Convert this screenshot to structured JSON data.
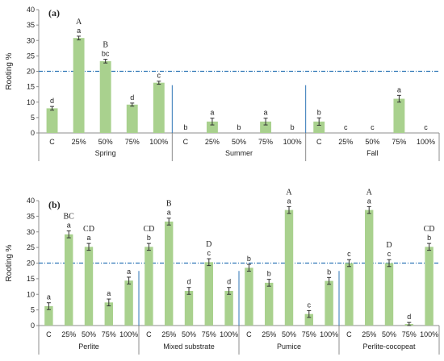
{
  "chart_data": [
    {
      "type": "bar",
      "panel_label": "(a)",
      "ylabel": "Rooting %",
      "ylim": [
        0,
        40
      ],
      "yticks": [
        0,
        5,
        10,
        15,
        20,
        25,
        30,
        35,
        40
      ],
      "reference_line": 20,
      "bar_color": "#a9d18e",
      "reference_color": "#2e75b6",
      "groups": [
        {
          "name": "Spring",
          "categories": [
            "C",
            "25%",
            "50%",
            "75%",
            "100%"
          ],
          "values": [
            8,
            30.8,
            23.3,
            9.2,
            16.3
          ],
          "errors": [
            0.6,
            0.6,
            0.6,
            0.5,
            0.5
          ],
          "letters": [
            "d",
            "a",
            "bc",
            "d",
            "c"
          ],
          "upper_letters": [
            "",
            "A",
            "B",
            "",
            ""
          ]
        },
        {
          "name": "Summer",
          "categories": [
            "C",
            "25%",
            "50%",
            "75%",
            "100%"
          ],
          "values": [
            0,
            3.7,
            0,
            3.7,
            0
          ],
          "errors": [
            0,
            1.1,
            0,
            1.1,
            0
          ],
          "letters": [
            "b",
            "a",
            "b",
            "a",
            "b"
          ],
          "upper_letters": [
            "",
            "",
            "",
            "",
            ""
          ]
        },
        {
          "name": "Fall",
          "categories": [
            "C",
            "25%",
            "50%",
            "75%",
            "100%"
          ],
          "values": [
            3.7,
            0,
            0,
            11.1,
            0
          ],
          "errors": [
            1.2,
            0,
            0,
            1.1,
            0
          ],
          "letters": [
            "b",
            "c",
            "c",
            "a",
            "c"
          ],
          "upper_letters": [
            "",
            "",
            "",
            "",
            ""
          ]
        }
      ]
    },
    {
      "type": "bar",
      "panel_label": "(b)",
      "ylabel": "Rooting %",
      "ylim": [
        0,
        40
      ],
      "yticks": [
        0,
        5,
        10,
        15,
        20,
        25,
        30,
        35,
        40
      ],
      "reference_line": 20,
      "bar_color": "#a9d18e",
      "reference_color": "#2e75b6",
      "groups": [
        {
          "name": "Perlite",
          "categories": [
            "C",
            "25%",
            "50%",
            "75%",
            "100%"
          ],
          "values": [
            6.2,
            29.2,
            25.2,
            7.4,
            14.4
          ],
          "errors": [
            1.1,
            1.1,
            1.1,
            1.1,
            1.1
          ],
          "letters": [
            "a",
            "a",
            "a",
            "a",
            "a"
          ],
          "upper_letters": [
            "",
            "BC",
            "CD",
            "",
            ""
          ]
        },
        {
          "name": "Mixed substrate",
          "categories": [
            "C",
            "25%",
            "50%",
            "75%",
            "100%"
          ],
          "values": [
            25.2,
            33.3,
            11.1,
            20.3,
            11.1
          ],
          "errors": [
            1.1,
            1.1,
            1.1,
            1.1,
            1.1
          ],
          "letters": [
            "b",
            "a",
            "d",
            "c",
            "d"
          ],
          "upper_letters": [
            "CD",
            "B",
            "",
            "D",
            ""
          ]
        },
        {
          "name": "Pumice",
          "categories": [
            "C",
            "25%",
            "50%",
            "75%",
            "100%"
          ],
          "values": [
            18.5,
            13.7,
            37,
            3.7,
            14.3
          ],
          "errors": [
            1.1,
            1.1,
            1.1,
            1.1,
            1.1
          ],
          "letters": [
            "b",
            "b",
            "a",
            "c",
            "b"
          ],
          "upper_letters": [
            "",
            "",
            "A",
            "",
            ""
          ]
        },
        {
          "name": "Perlite-cocopeat",
          "categories": [
            "C",
            "25%",
            "50%",
            "75%",
            "100%"
          ],
          "values": [
            20,
            37,
            20,
            0.5,
            25.2
          ],
          "errors": [
            1.1,
            1.1,
            1.1,
            0.5,
            1.1
          ],
          "letters": [
            "c",
            "a",
            "c",
            "d",
            "b"
          ],
          "upper_letters": [
            "",
            "A",
            "D",
            "",
            "CD"
          ]
        }
      ]
    }
  ]
}
